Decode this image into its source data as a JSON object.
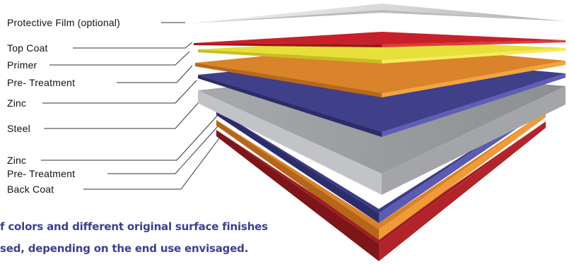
{
  "layers": [
    {
      "id": "protective-film",
      "label": "Protective Film (optional)",
      "color": "#c9cacd"
    },
    {
      "id": "top-coat",
      "label": "Top Coat",
      "color": "#c11f24"
    },
    {
      "id": "primer",
      "label": "Primer",
      "color": "#e9e23a"
    },
    {
      "id": "pre-treatment-top",
      "label": "Pre- Treatment",
      "color": "#e3892a"
    },
    {
      "id": "zinc-top",
      "label": "Zinc",
      "color": "#3f3f8a"
    },
    {
      "id": "steel",
      "label": "Steel",
      "color": "#8f9296"
    },
    {
      "id": "zinc-bottom",
      "label": "Zinc",
      "color": "#3f3f8a"
    },
    {
      "id": "pre-treatment-bottom",
      "label": "Pre- Treatment",
      "color": "#e3892a"
    },
    {
      "id": "back-coat",
      "label": "Back Coat",
      "color": "#b3232a"
    }
  ],
  "caption": {
    "line1": "f colors and different original surface finishes",
    "line2": "sed, depending on the end use envisaged."
  }
}
